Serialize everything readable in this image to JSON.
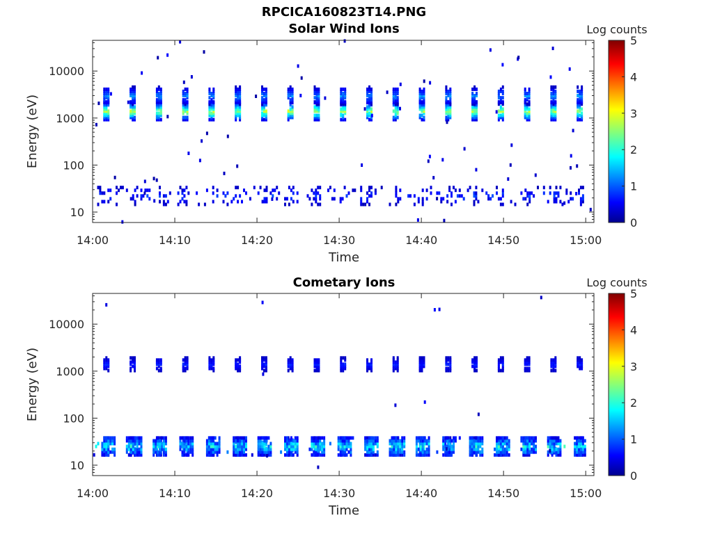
{
  "figure_title": "RPCICA160823T14.PNG",
  "chart_data": [
    {
      "type": "heatmap",
      "title": "Solar Wind Ions",
      "xlabel": "Time",
      "ylabel": "Energy (eV)",
      "y_scale": "log",
      "ylim": [
        6,
        45000
      ],
      "xlim_minutes": [
        0,
        61
      ],
      "x_ticks": [
        {
          "value": 0,
          "label": "14:00"
        },
        {
          "value": 10,
          "label": "14:10"
        },
        {
          "value": 20,
          "label": "14:20"
        },
        {
          "value": 30,
          "label": "14:30"
        },
        {
          "value": 40,
          "label": "14:40"
        },
        {
          "value": 50,
          "label": "14:50"
        },
        {
          "value": 60,
          "label": "15:00"
        }
      ],
      "y_ticks": [
        {
          "value": 10,
          "label": "10"
        },
        {
          "value": 100,
          "label": "100"
        },
        {
          "value": 1000,
          "label": "1000"
        },
        {
          "value": 10000,
          "label": "10000"
        }
      ],
      "colorbar": {
        "label": "Log counts",
        "min": 0,
        "max": 5,
        "ticks": [
          "0",
          "1",
          "2",
          "3",
          "4",
          "5"
        ],
        "colormap": "jet"
      },
      "scan_start_minutes": [
        1.3,
        4.5,
        7.7,
        10.9,
        14.1,
        17.3,
        20.5,
        23.7,
        26.9,
        30.1,
        33.3,
        36.5,
        39.7,
        42.9,
        46.1,
        49.3,
        52.5,
        55.7,
        58.9
      ],
      "bursts": [
        {
          "energy": 1400,
          "peak": 3.0
        },
        {
          "energy": 3000,
          "peak": 1.4
        }
      ],
      "low_energy_band": {
        "energy": 22,
        "peak": 1.0
      }
    },
    {
      "type": "heatmap",
      "title": "Cometary Ions",
      "xlabel": "Time",
      "ylabel": "Energy (eV)",
      "y_scale": "log",
      "ylim": [
        6,
        45000
      ],
      "xlim_minutes": [
        0,
        61
      ],
      "x_ticks": [
        {
          "value": 0,
          "label": "14:00"
        },
        {
          "value": 10,
          "label": "14:10"
        },
        {
          "value": 20,
          "label": "14:20"
        },
        {
          "value": 30,
          "label": "14:30"
        },
        {
          "value": 40,
          "label": "14:40"
        },
        {
          "value": 50,
          "label": "14:50"
        },
        {
          "value": 60,
          "label": "15:00"
        }
      ],
      "y_ticks": [
        {
          "value": 10,
          "label": "10"
        },
        {
          "value": 100,
          "label": "100"
        },
        {
          "value": 1000,
          "label": "1000"
        },
        {
          "value": 10000,
          "label": "10000"
        }
      ],
      "colorbar": {
        "label": "Log counts",
        "min": 0,
        "max": 5,
        "ticks": [
          "0",
          "1",
          "2",
          "3",
          "4",
          "5"
        ],
        "colormap": "jet"
      },
      "scan_start_minutes": [
        1.3,
        4.5,
        7.7,
        10.9,
        14.1,
        17.3,
        20.5,
        23.7,
        26.9,
        30.1,
        33.3,
        36.5,
        39.7,
        42.9,
        46.1,
        49.3,
        52.5,
        55.7,
        58.9
      ],
      "bursts": [
        {
          "energy": 1400,
          "peak": 0.8
        },
        {
          "energy": 25,
          "peak": 2.2
        }
      ],
      "low_energy_band": {
        "energy": 25,
        "peak": 2.2
      }
    }
  ]
}
